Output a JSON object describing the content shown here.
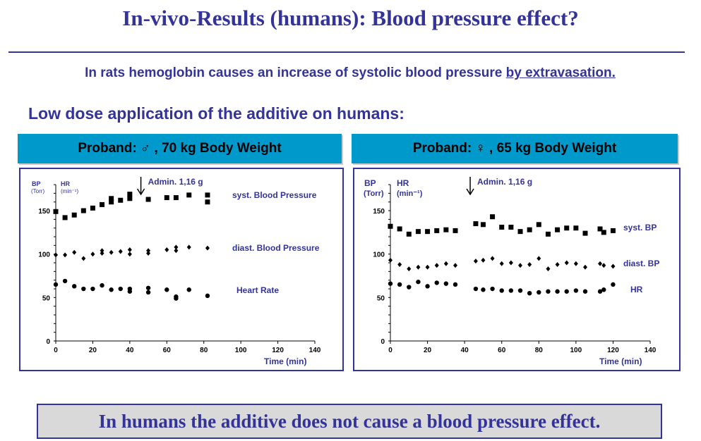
{
  "title": "In-vivo-Results (humans): Blood pressure effect?",
  "subtitle": {
    "text": "In rats hemoglobin causes an increase of systolic blood pressure ",
    "underlined": "by extravasation."
  },
  "section_heading": "Low dose application of the additive on humans:",
  "conclusion": "In humans the additive does not cause a blood pressure effect.",
  "colors": {
    "text": "#333399",
    "header_bar": "#0099cc",
    "conclusion_bg": "#d9d9d9",
    "markers": "#000000"
  },
  "chart_data": [
    {
      "type": "scatter",
      "header": "Proband: ♂ , 70 kg Body Weight",
      "y_label_bp": "BP",
      "y_unit_bp": "(Torr)",
      "y_label_hr": "HR",
      "y_unit_hr": "(min⁻¹)",
      "xlabel": "Time (min)",
      "annotation": "Admin. 1,16 g",
      "annotation_x": 46,
      "xlim": [
        0,
        140
      ],
      "ylim": [
        0,
        180
      ],
      "xticks": [
        0,
        20,
        40,
        60,
        80,
        100,
        120,
        140
      ],
      "yticks": [
        0,
        50,
        100,
        150
      ],
      "grid": false,
      "series": [
        {
          "name": "syst. Blood Pressure",
          "marker": "square",
          "x": [
            0,
            5,
            10,
            15,
            20,
            25,
            30,
            30,
            35,
            40,
            40,
            50,
            60,
            65,
            72,
            82,
            82
          ],
          "y": [
            149,
            142,
            145,
            150,
            153,
            157,
            160,
            164,
            162,
            164,
            169,
            163,
            165,
            165,
            168,
            168,
            160
          ]
        },
        {
          "name": "diast. Blood Pressure",
          "marker": "diamond",
          "x": [
            0,
            5,
            10,
            15,
            20,
            25,
            25,
            30,
            35,
            40,
            40,
            50,
            50,
            60,
            65,
            65,
            72,
            82
          ],
          "y": [
            99,
            99,
            102,
            95,
            100,
            101,
            104,
            102,
            103,
            100,
            105,
            101,
            104,
            105,
            104,
            108,
            108,
            107
          ]
        },
        {
          "name": "Heart Rate",
          "marker": "circle",
          "x": [
            0,
            5,
            10,
            15,
            20,
            25,
            30,
            35,
            40,
            40,
            50,
            50,
            60,
            65,
            65,
            72,
            82
          ],
          "y": [
            65,
            69,
            63,
            60,
            60,
            64,
            59,
            60,
            60,
            57,
            61,
            56,
            59,
            51,
            49,
            59,
            52
          ]
        }
      ]
    },
    {
      "type": "scatter",
      "header": "Proband: ♀ , 65 kg Body Weight",
      "y_label_bp": "BP",
      "y_unit_bp": "(Torr)",
      "y_label_hr": "HR",
      "y_unit_hr": "(min⁻¹)",
      "xlabel": "Time (min)",
      "annotation": "Admin. 1,16 g",
      "annotation_x": 43,
      "xlim": [
        0,
        140
      ],
      "ylim": [
        0,
        180
      ],
      "xticks": [
        0,
        20,
        40,
        60,
        80,
        100,
        120,
        140
      ],
      "yticks": [
        0,
        50,
        100,
        150
      ],
      "grid": false,
      "series": [
        {
          "name": "syst. BP",
          "marker": "square",
          "x": [
            0,
            5,
            10,
            15,
            20,
            25,
            30,
            35,
            46,
            50,
            55,
            60,
            65,
            70,
            75,
            80,
            85,
            90,
            95,
            100,
            105,
            113,
            115,
            120
          ],
          "y": [
            132,
            129,
            123,
            126,
            126,
            127,
            128,
            127,
            135,
            134,
            143,
            131,
            131,
            126,
            128,
            134,
            123,
            128,
            130,
            130,
            124,
            129,
            125,
            127
          ]
        },
        {
          "name": "diast. BP",
          "marker": "diamond",
          "x": [
            0,
            5,
            10,
            15,
            20,
            25,
            30,
            35,
            46,
            50,
            55,
            60,
            65,
            70,
            75,
            80,
            85,
            90,
            95,
            100,
            105,
            113,
            115,
            120
          ],
          "y": [
            93,
            88,
            83,
            85,
            85,
            87,
            89,
            87,
            92,
            93,
            95,
            89,
            90,
            87,
            88,
            95,
            83,
            88,
            90,
            89,
            85,
            89,
            87,
            86
          ]
        },
        {
          "name": "HR",
          "marker": "circle",
          "x": [
            0,
            5,
            10,
            15,
            20,
            25,
            30,
            35,
            46,
            50,
            55,
            60,
            65,
            70,
            75,
            80,
            85,
            90,
            95,
            100,
            105,
            113,
            115,
            120
          ],
          "y": [
            66,
            65,
            62,
            68,
            63,
            67,
            66,
            65,
            60,
            59,
            60,
            58,
            58,
            58,
            55,
            56,
            57,
            57,
            57,
            58,
            57,
            57,
            59,
            65
          ]
        }
      ]
    }
  ]
}
